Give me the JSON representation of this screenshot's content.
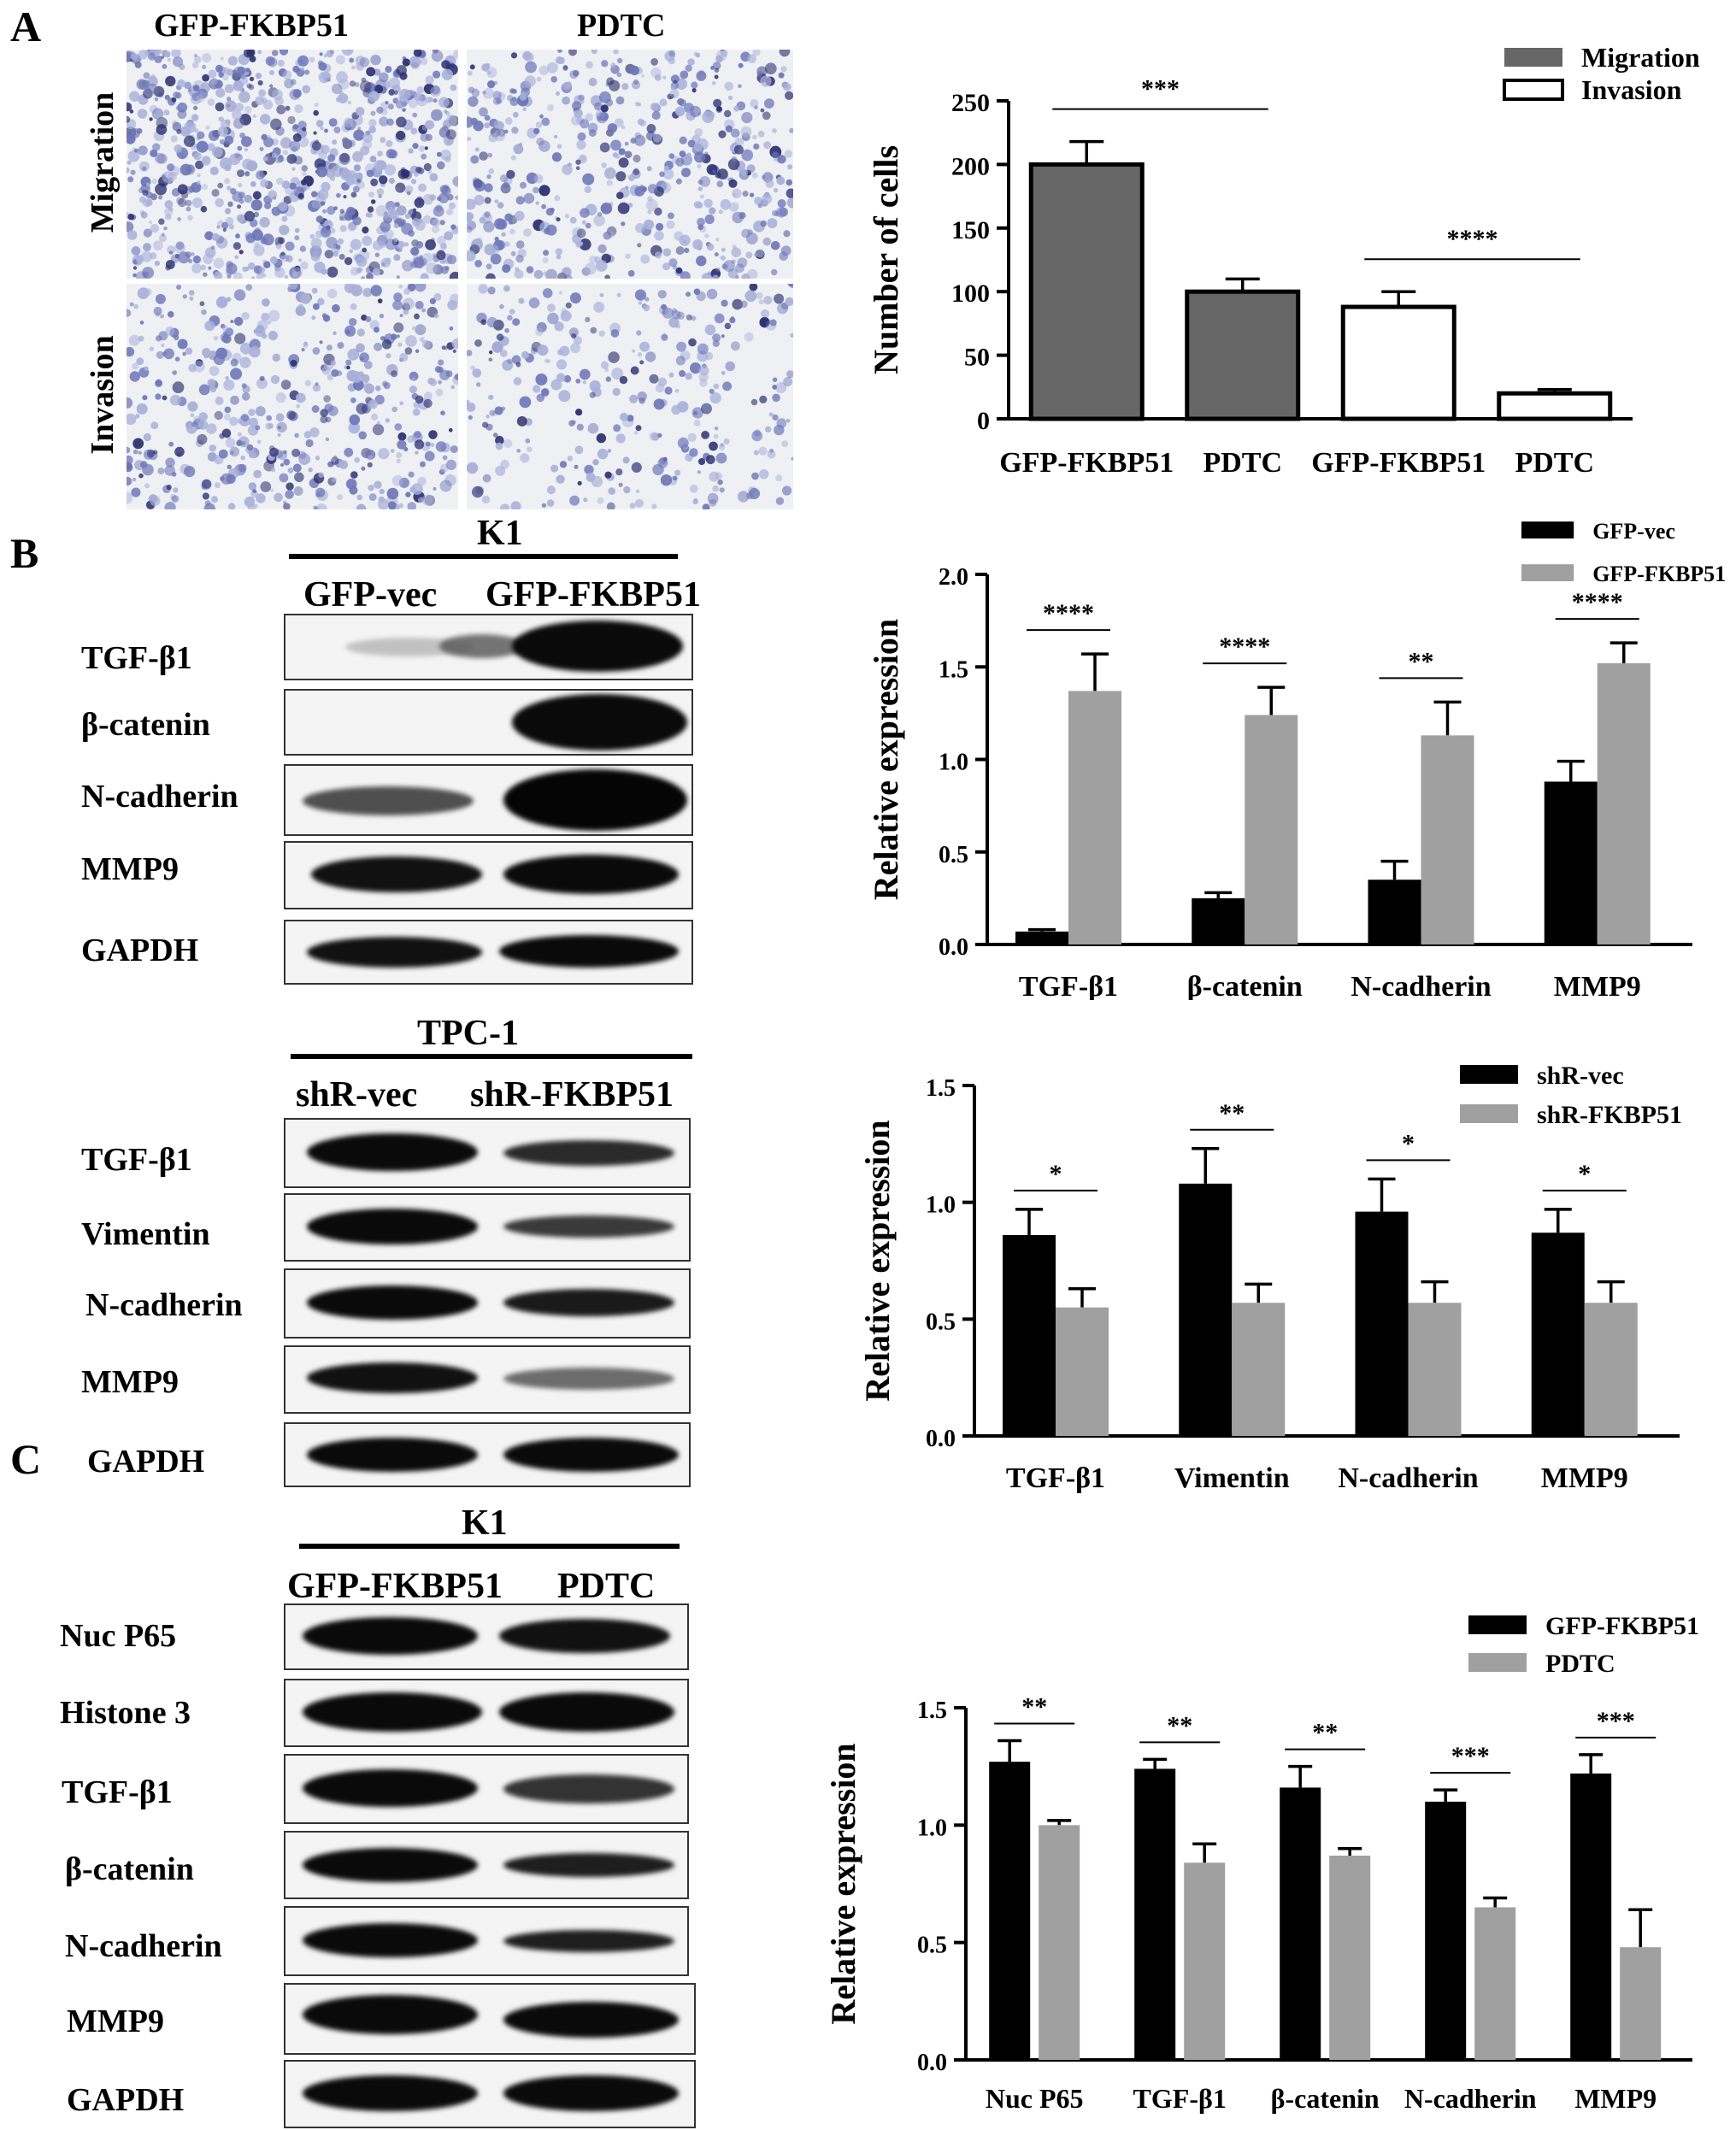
{
  "panels": {
    "a": "A",
    "b": "B",
    "c": "C"
  },
  "micro": {
    "col1": "GFP-FKBP51",
    "col2": "PDTC",
    "row1": "Migration",
    "row2": "Invasion"
  },
  "blots": {
    "k1": {
      "cell_line": "K1",
      "cols": [
        "GFP-vec",
        "GFP-FKBP51"
      ],
      "rows": [
        "TGF-β1",
        "β-catenin",
        "N-cadherin",
        "MMP9",
        "GAPDH"
      ]
    },
    "tpc1": {
      "cell_line": "TPC-1",
      "cols": [
        "shR-vec",
        "shR-FKBP51"
      ],
      "rows": [
        "TGF-β1",
        "Vimentin",
        "N-cadherin",
        "MMP9",
        "GAPDH"
      ]
    },
    "k1c": {
      "cell_line": "K1",
      "cols": [
        "GFP-FKBP51",
        "PDTC"
      ],
      "rows": [
        "Nuc P65",
        "Histone 3",
        "TGF-β1",
        "β-catenin",
        "N-cadherin",
        "MMP9",
        "GAPDH"
      ]
    }
  },
  "chart_data": [
    {
      "type": "bar",
      "categories": [
        "GFP-FKBP51",
        "PDTC",
        "GFP-FKBP51",
        "PDTC"
      ],
      "values": [
        200,
        100,
        88,
        20
      ],
      "errors": [
        18,
        10,
        12,
        3
      ],
      "series_index": [
        0,
        0,
        1,
        1
      ],
      "series": [
        {
          "name": "Migration",
          "color": "#666666"
        },
        {
          "name": "Invasion",
          "color": "#ffffff"
        }
      ],
      "ylabel": "Number of cells",
      "ylim": [
        0,
        250
      ],
      "yticks": [
        "0",
        "50",
        "100",
        "150",
        "200",
        "250"
      ],
      "significance": [
        {
          "from": 0,
          "to": 1,
          "label": "***"
        },
        {
          "from": 2,
          "to": 3,
          "label": "****"
        }
      ],
      "legend": "top-right"
    },
    {
      "type": "bar",
      "categories": [
        "TGF-β1",
        "β-catenin",
        "N-cadherin",
        "MMP9"
      ],
      "series": [
        {
          "name": "GFP-vec",
          "color": "#000000",
          "values": [
            0.07,
            0.25,
            0.35,
            0.88
          ],
          "errors": [
            0.01,
            0.03,
            0.1,
            0.11
          ]
        },
        {
          "name": "GFP-FKBP51",
          "color": "#a0a0a0",
          "values": [
            1.37,
            1.24,
            1.13,
            1.52
          ],
          "errors": [
            0.2,
            0.15,
            0.18,
            0.11
          ]
        }
      ],
      "ylabel": "Relative expression",
      "ylim": [
        0,
        2.0
      ],
      "yticks": [
        "0.0",
        "0.5",
        "1.0",
        "1.5",
        "2.0"
      ],
      "significance": [
        "****",
        "****",
        "**",
        "****"
      ],
      "legend": "top-right"
    },
    {
      "type": "bar",
      "categories": [
        "TGF-β1",
        "Vimentin",
        "N-cadherin",
        "MMP9"
      ],
      "series": [
        {
          "name": "shR-vec",
          "color": "#000000",
          "values": [
            0.86,
            1.08,
            0.96,
            0.87
          ],
          "errors": [
            0.11,
            0.15,
            0.14,
            0.1
          ]
        },
        {
          "name": "shR-FKBP51",
          "color": "#a0a0a0",
          "values": [
            0.55,
            0.57,
            0.57,
            0.57
          ],
          "errors": [
            0.08,
            0.08,
            0.09,
            0.09
          ]
        }
      ],
      "ylabel": "Relative expression",
      "ylim": [
        0,
        1.5
      ],
      "yticks": [
        "0.0",
        "0.5",
        "1.0",
        "1.5"
      ],
      "significance": [
        "*",
        "**",
        "*",
        "*"
      ],
      "legend": "top-right"
    },
    {
      "type": "bar",
      "categories": [
        "Nuc P65",
        "TGF-β1",
        "β-catenin",
        "N-cadherin",
        "MMP9"
      ],
      "series": [
        {
          "name": "GFP-FKBP51",
          "color": "#000000",
          "values": [
            1.27,
            1.24,
            1.16,
            1.1,
            1.22
          ],
          "errors": [
            0.09,
            0.04,
            0.09,
            0.05,
            0.08
          ]
        },
        {
          "name": "PDTC",
          "color": "#a0a0a0",
          "values": [
            1.0,
            0.84,
            0.87,
            0.65,
            0.48
          ],
          "errors": [
            0.02,
            0.08,
            0.03,
            0.04,
            0.16
          ]
        }
      ],
      "ylabel": "Relative expression",
      "ylim": [
        0,
        1.5
      ],
      "yticks": [
        "0.0",
        "0.5",
        "1.0",
        "1.5"
      ],
      "significance": [
        "**",
        "**",
        "**",
        "***",
        "***"
      ],
      "legend": "top-right"
    }
  ]
}
